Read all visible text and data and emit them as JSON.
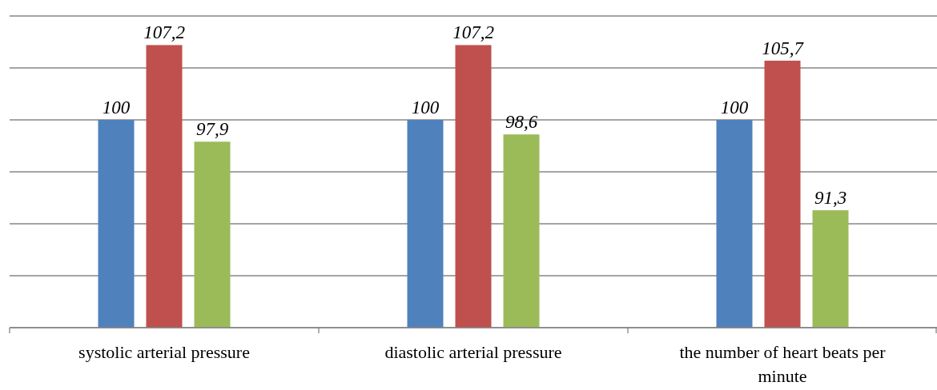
{
  "chart_data": {
    "type": "bar",
    "categories": [
      "systolic arterial pressure",
      "diastolic arterial pressure",
      "the number of heart beats per minute"
    ],
    "series": [
      {
        "color": "#4f81bd",
        "values": [
          100,
          100,
          100
        ],
        "value_labels": [
          "100",
          "100",
          "100"
        ]
      },
      {
        "color": "#c0504d",
        "values": [
          107.2,
          107.2,
          105.7
        ],
        "value_labels": [
          "107,2",
          "107,2",
          "105,7"
        ]
      },
      {
        "color": "#9bbb59",
        "values": [
          97.9,
          98.6,
          91.3
        ],
        "value_labels": [
          "97,9",
          "98,6",
          "91,3"
        ]
      }
    ],
    "ylim": [
      80,
      110
    ],
    "yticks": [
      {
        "value": 80,
        "label": null
      },
      {
        "value": 85,
        "label": null
      },
      {
        "value": 90,
        "label": null
      },
      {
        "value": 95,
        "label": null
      },
      {
        "value": 100,
        "label": null
      },
      {
        "value": 105,
        "label": null
      },
      {
        "value": 110,
        "label": null
      }
    ],
    "grid": "y",
    "tick_labels": "x"
  }
}
